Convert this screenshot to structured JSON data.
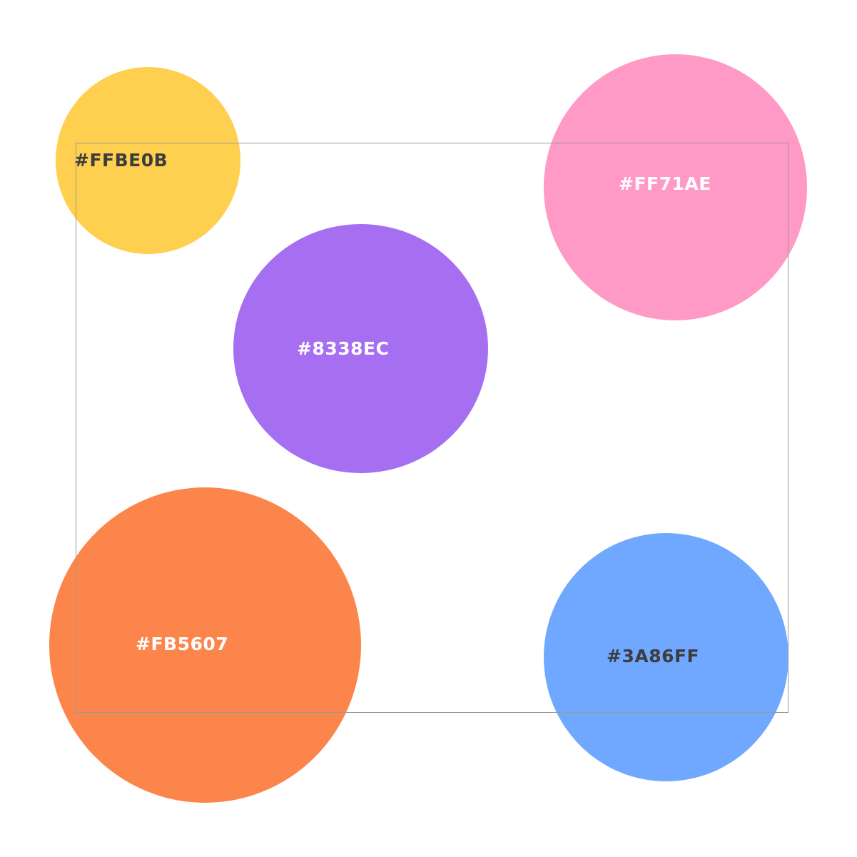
{
  "swatches": [
    {
      "id": "yellow",
      "label": "#FFBE0B",
      "color": "#FFBE0B"
    },
    {
      "id": "pink",
      "label": "#FF71AE",
      "color": "#FF71AE"
    },
    {
      "id": "purple",
      "label": "#8338EC",
      "color": "#8338EC"
    },
    {
      "id": "orange",
      "label": "#FB5607",
      "color": "#FB5607"
    },
    {
      "id": "blue",
      "label": "#3A86FF",
      "color": "#3A86FF"
    }
  ]
}
